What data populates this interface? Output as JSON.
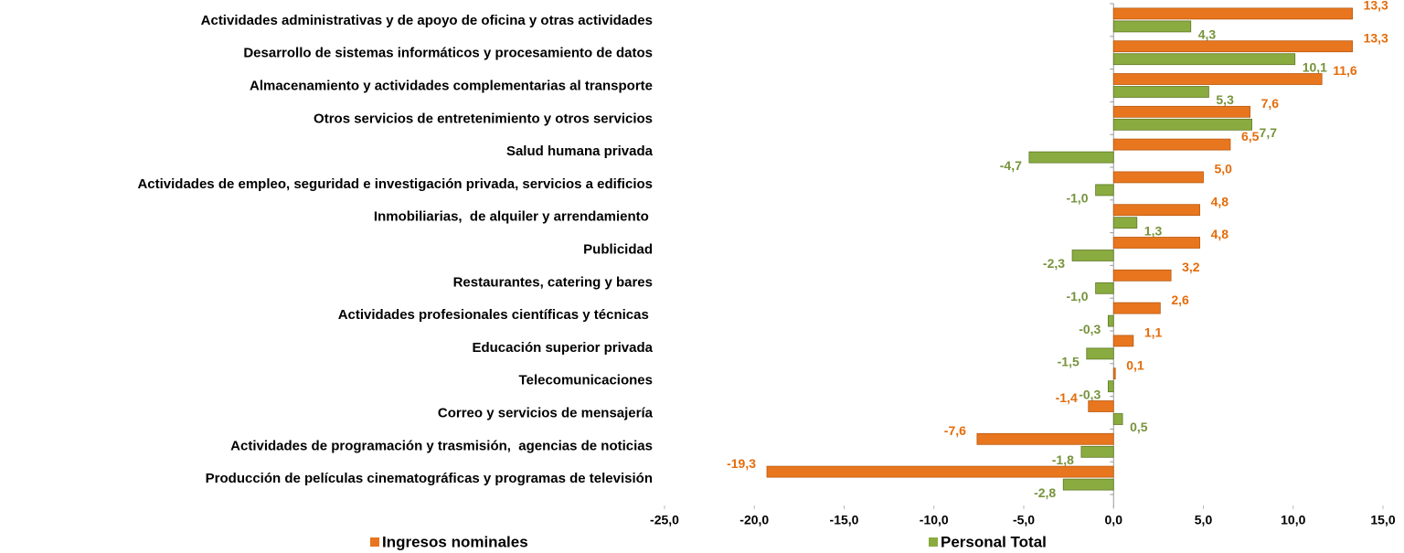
{
  "chart_data": {
    "type": "hbar",
    "categories": [
      "Actividades administrativas y de apoyo de oficina y otras actividades",
      "Desarrollo de sistemas informáticos y procesamiento de datos",
      "Almacenamiento y actividades complementarias al transporte",
      "Otros servicios de entretenimiento y otros servicios",
      "Salud humana privada",
      "Actividades de empleo, seguridad e investigación privada, servicios a edificios",
      "Inmobiliarias,  de alquiler y arrendamiento ",
      "Publicidad",
      "Restaurantes, catering y bares",
      "Actividades profesionales científicas y técnicas ",
      "Educación superior privada",
      "Telecomunicaciones",
      "Correo y servicios de mensajería",
      "Actividades de programación y trasmisión,  agencias de noticias",
      "Producción de películas cinematográficas y programas de televisión"
    ],
    "series": [
      {
        "name": "Ingresos nominales",
        "color": "#e8761e",
        "label_color": "#e46c0a",
        "values": [
          13.3,
          13.3,
          11.6,
          7.6,
          6.5,
          5.0,
          4.8,
          4.8,
          3.2,
          2.6,
          1.1,
          0.1,
          -1.4,
          -7.6,
          -19.3
        ],
        "value_labels": [
          "13,3",
          "13,3",
          "11,6",
          "7,6",
          "6,5",
          "5,0",
          "4,8",
          "4,8",
          "3,2",
          "2,6",
          "1,1",
          "0,1",
          "-1,4",
          "-7,6",
          "-19,3"
        ]
      },
      {
        "name": "Personal Total",
        "color": "#8aab3f",
        "label_color": "#77933c",
        "values": [
          4.3,
          10.1,
          5.3,
          7.7,
          -4.7,
          -1.0,
          1.3,
          -2.3,
          -1.0,
          -0.3,
          -1.5,
          -0.3,
          0.5,
          -1.8,
          -2.8
        ],
        "value_labels": [
          "4,3",
          "10,1",
          "5,3",
          "7,7",
          "-4,7",
          "-1,0",
          "1,3",
          "-2,3",
          "-1,0",
          "-0,3",
          "-1,5",
          "-0,3",
          "0,5",
          "-1,8",
          "-2,8"
        ]
      }
    ],
    "xlim": [
      -25,
      15
    ],
    "xticks": [
      {
        "value": -25,
        "label": "-25,0"
      },
      {
        "value": -20,
        "label": "-20,0"
      },
      {
        "value": -15,
        "label": "-15,0"
      },
      {
        "value": -10,
        "label": "-10,0"
      },
      {
        "value": -5,
        "label": "-5,0"
      },
      {
        "value": 0,
        "label": "0,0"
      },
      {
        "value": 5,
        "label": "5,0"
      },
      {
        "value": 10,
        "label": "10,0"
      },
      {
        "value": 15,
        "label": "15,0"
      }
    ],
    "grid": false,
    "legend": "bottom"
  }
}
